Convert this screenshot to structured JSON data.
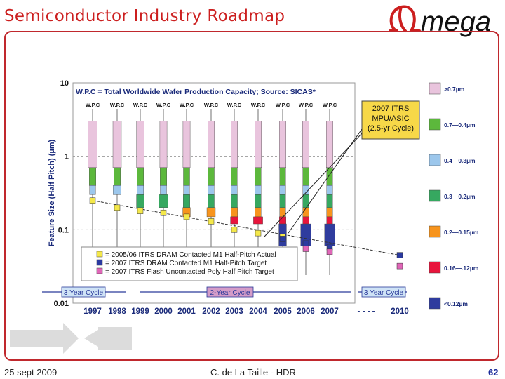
{
  "slide": {
    "title": "Semiconductor Industry Roadmap",
    "logo_text": "Omega",
    "footer_left": "25 sept 2009",
    "footer_center": "C. de La Taille - HDR",
    "page_number": "62"
  },
  "colors": {
    "title": "#cc1f1f",
    "frame": "#c0282d",
    "page_number": "#1a2a9a"
  },
  "chart_data": {
    "type": "bar",
    "title": "W.P.C = Total Worldwide Wafer Production Capacity; Source:  SICAS*",
    "ylabel": "Feature Size (Half Pitch) (µm)",
    "yscale": "log",
    "ylim": [
      0.01,
      10
    ],
    "y_ticks": [
      "10",
      "1",
      "0.1",
      "0.01"
    ],
    "categories": [
      "1997",
      "1998",
      "1999",
      "2000",
      "2001",
      "2002",
      "2003",
      "2004",
      "2005",
      "2006",
      "2007",
      "- - - -",
      "2010"
    ],
    "column_label": "W.P.C",
    "bands": [
      {
        "label": ">0.7µm",
        "color": "#e9c4dd",
        "range": [
          0.7,
          3.0
        ]
      },
      {
        "label": "0.7—0.4µm",
        "color": "#5cb83c",
        "range": [
          0.4,
          0.7
        ]
      },
      {
        "label": "0.4—0.3µm",
        "color": "#9cc7ec",
        "range": [
          0.3,
          0.4
        ]
      },
      {
        "label": "0.3—0.2µm",
        "color": "#36a860",
        "range": [
          0.2,
          0.3
        ]
      },
      {
        "label": "0.2—0.15µm",
        "color": "#f7941d",
        "range": [
          0.15,
          0.2
        ]
      },
      {
        "label": "0.16—.12µm",
        "color": "#e8153c",
        "range": [
          0.12,
          0.15
        ]
      },
      {
        "label": "<0.12µm",
        "color": "#2f3c9e",
        "range": [
          0.06,
          0.12
        ]
      }
    ],
    "stacks": [
      {
        "year": "1997",
        "segments": [
          {
            "band": 0,
            "share": 0.45
          },
          {
            "band": 1,
            "share": 0.2
          },
          {
            "band": 2,
            "share": 0.1
          }
        ]
      },
      {
        "year": "1998",
        "segments": [
          {
            "band": 0,
            "share": 0.4
          },
          {
            "band": 1,
            "share": 0.2
          },
          {
            "band": 2,
            "share": 0.35
          }
        ]
      },
      {
        "year": "1999",
        "segments": [
          {
            "band": 0,
            "share": 0.3
          },
          {
            "band": 1,
            "share": 0.2
          },
          {
            "band": 2,
            "share": 0.2
          },
          {
            "band": 3,
            "share": 0.3
          }
        ]
      },
      {
        "year": "2000",
        "segments": [
          {
            "band": 0,
            "share": 0.25
          },
          {
            "band": 1,
            "share": 0.2
          },
          {
            "band": 2,
            "share": 0.15
          },
          {
            "band": 3,
            "share": 0.5
          }
        ]
      },
      {
        "year": "2001",
        "segments": [
          {
            "band": 0,
            "share": 0.25
          },
          {
            "band": 1,
            "share": 0.15
          },
          {
            "band": 2,
            "share": 0.1
          },
          {
            "band": 3,
            "share": 0.2
          },
          {
            "band": 4,
            "share": 0.3
          }
        ]
      },
      {
        "year": "2002",
        "segments": [
          {
            "band": 0,
            "share": 0.2
          },
          {
            "band": 1,
            "share": 0.15
          },
          {
            "band": 2,
            "share": 0.1
          },
          {
            "band": 3,
            "share": 0.15
          },
          {
            "band": 4,
            "share": 0.4
          }
        ]
      },
      {
        "year": "2003",
        "segments": [
          {
            "band": 0,
            "share": 0.2
          },
          {
            "band": 1,
            "share": 0.1
          },
          {
            "band": 2,
            "share": 0.1
          },
          {
            "band": 3,
            "share": 0.15
          },
          {
            "band": 4,
            "share": 0.2
          },
          {
            "band": 5,
            "share": 0.3
          }
        ]
      },
      {
        "year": "2004",
        "segments": [
          {
            "band": 0,
            "share": 0.2
          },
          {
            "band": 1,
            "share": 0.1
          },
          {
            "band": 2,
            "share": 0.1
          },
          {
            "band": 3,
            "share": 0.1
          },
          {
            "band": 4,
            "share": 0.1
          },
          {
            "band": 5,
            "share": 0.5
          }
        ]
      },
      {
        "year": "2005",
        "segments": [
          {
            "band": 0,
            "share": 0.2
          },
          {
            "band": 1,
            "share": 0.1
          },
          {
            "band": 2,
            "share": 0.1
          },
          {
            "band": 3,
            "share": 0.1
          },
          {
            "band": 4,
            "share": 0.1
          },
          {
            "band": 5,
            "share": 0.2
          },
          {
            "band": 6,
            "share": 0.3
          }
        ]
      },
      {
        "year": "2006",
        "segments": [
          {
            "band": 0,
            "share": 0.2
          },
          {
            "band": 1,
            "share": 0.1
          },
          {
            "band": 2,
            "share": 0.1
          },
          {
            "band": 3,
            "share": 0.1
          },
          {
            "band": 4,
            "share": 0.1
          },
          {
            "band": 5,
            "share": 0.1
          },
          {
            "band": 6,
            "share": 0.6
          }
        ]
      },
      {
        "year": "2007",
        "segments": [
          {
            "band": 0,
            "share": 0.2
          },
          {
            "band": 1,
            "share": 0.1
          },
          {
            "band": 2,
            "share": 0.1
          },
          {
            "band": 3,
            "share": 0.1
          },
          {
            "band": 4,
            "share": 0.1
          },
          {
            "band": 5,
            "share": 0.1
          },
          {
            "band": 6,
            "share": 0.6
          }
        ]
      }
    ],
    "series": [
      {
        "name": "= 2005/06 ITRS DRAM Contacted M1 Half-Pitch Actual",
        "color": "#f4e84a",
        "points": [
          [
            "1997",
            0.25
          ],
          [
            "1998",
            0.2
          ],
          [
            "1999",
            0.18
          ],
          [
            "2000",
            0.17
          ],
          [
            "2001",
            0.15
          ],
          [
            "2002",
            0.13
          ],
          [
            "2003",
            0.1
          ],
          [
            "2004",
            0.09
          ],
          [
            "2005",
            0.08
          ]
        ]
      },
      {
        "name": "= 2007 ITRS DRAM Contacted M1 Half-Pitch Target",
        "color": "#2b3aa0",
        "points": [
          [
            "2005",
            0.075
          ],
          [
            "2006",
            0.065
          ],
          [
            "2007",
            0.058
          ],
          [
            "2010",
            0.045
          ]
        ]
      },
      {
        "name": "= 2007 ITRS Flash Uncontacted Poly Half Pitch Target",
        "color": "#e066b8",
        "points": [
          [
            "2006",
            0.055
          ],
          [
            "2007",
            0.05
          ],
          [
            "2010",
            0.032
          ]
        ]
      }
    ],
    "annotation": {
      "lines": [
        "2007 ITRS",
        "MPU/ASIC",
        "(2.5-yr Cycle)"
      ]
    },
    "cycles": [
      {
        "label": "3 Year Cycle",
        "from": "1996",
        "to": "1998"
      },
      {
        "label": "2-Year Cycle",
        "from": "2000",
        "to": "2004"
      },
      {
        "label": "3 Year Cycle",
        "from": "2008",
        "to": "2010"
      }
    ]
  }
}
